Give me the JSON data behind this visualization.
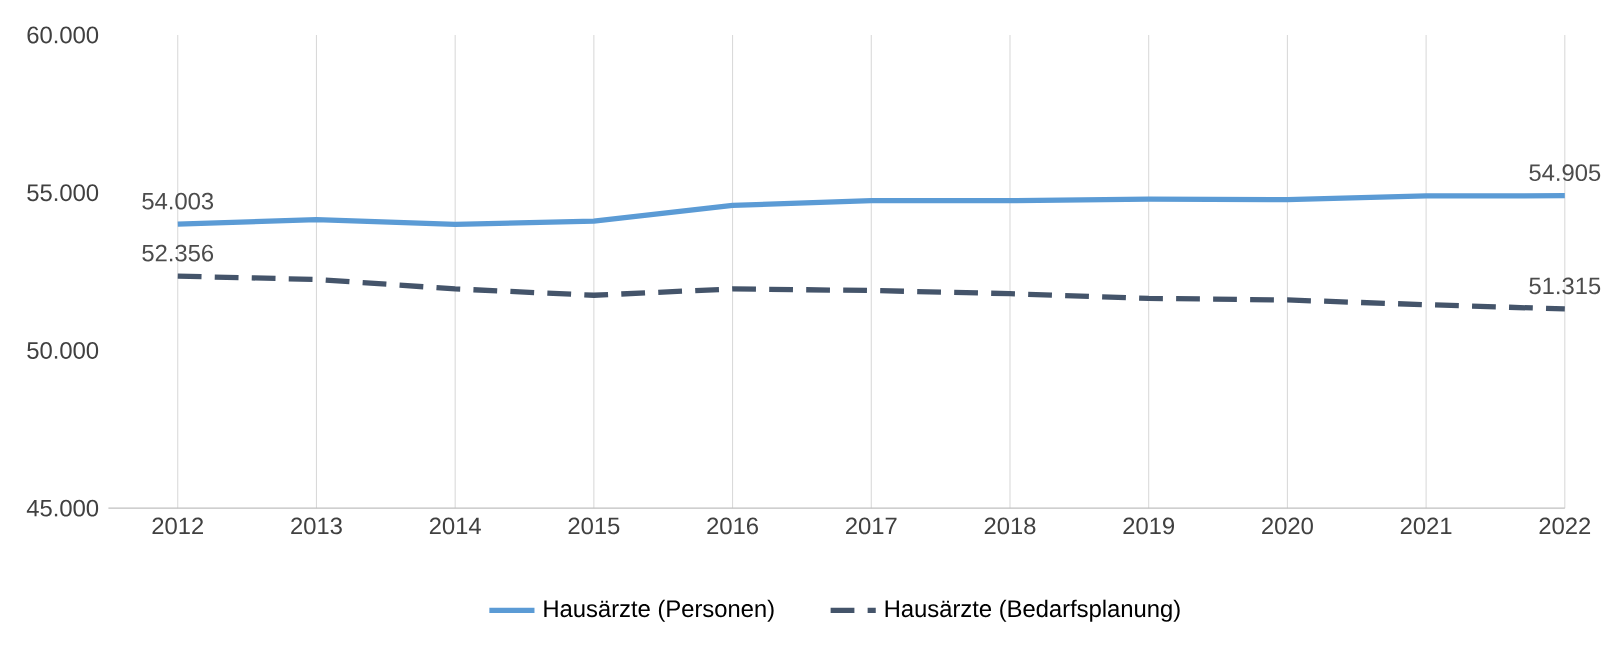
{
  "chart_data": {
    "type": "line",
    "categories": [
      "2012",
      "2013",
      "2014",
      "2015",
      "2016",
      "2017",
      "2018",
      "2019",
      "2020",
      "2021",
      "2022"
    ],
    "series": [
      {
        "name": "Hausärzte (Personen)",
        "color": "#5b9bd5",
        "line_style": "solid",
        "values": [
          54003,
          54150,
          54000,
          54100,
          54600,
          54750,
          54750,
          54800,
          54780,
          54900,
          54905
        ],
        "value_labels": [
          "54.003",
          null,
          null,
          null,
          null,
          null,
          null,
          null,
          null,
          null,
          "54.905"
        ]
      },
      {
        "name": "Hausärzte (Bedarfsplanung)",
        "color": "#44546a",
        "line_style": "dashed",
        "values": [
          52356,
          52250,
          51950,
          51750,
          51950,
          51900,
          51800,
          51650,
          51600,
          51450,
          51315
        ],
        "value_labels": [
          "52.356",
          null,
          null,
          null,
          null,
          null,
          null,
          null,
          null,
          null,
          "51.315"
        ]
      }
    ],
    "ylim": [
      45000,
      60000
    ],
    "yticks": [
      {
        "value": 45000,
        "label": "45.000"
      },
      {
        "value": 50000,
        "label": "50.000"
      },
      {
        "value": 55000,
        "label": "55.000"
      },
      {
        "value": 60000,
        "label": "60.000"
      }
    ],
    "grid": "x",
    "legend": "bottom",
    "marker": "none"
  }
}
